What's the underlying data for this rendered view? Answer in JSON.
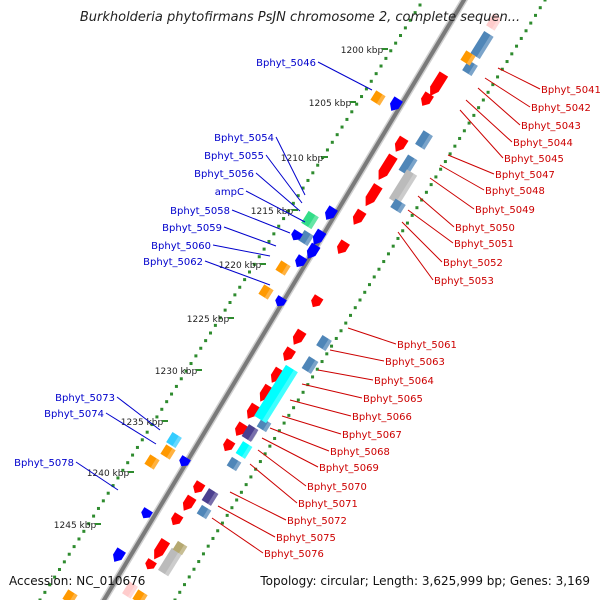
{
  "header": {
    "title": "Burkholderia phytofirmans PsJN chromosome 2, complete sequen..."
  },
  "footer": {
    "accession": "Accession: NC_010676",
    "summary": "Topology: circular; Length: 3,625,999 bp; Genes: 3,169"
  },
  "colors": {
    "backbone": "#7a7a7a",
    "tick_major": "#2e8b2e",
    "tick_minor": "#2e8b2e",
    "label_left": "#0000cc",
    "label_right": "#cc0000",
    "gene_red": "#ff0000",
    "gene_blue": "#0000ff",
    "gene_steelblue": "#4f86b8",
    "gene_orange": "#ff9900",
    "gene_cyan": "#00ffff",
    "gene_green": "#33dd88",
    "gene_purple": "#4b3f8f",
    "gene_gray": "#bbbbbb",
    "gene_khaki": "#b5a870",
    "gene_pink": "#ffcccc"
  },
  "scale_labels": [
    "1200 kbp",
    "1205 kbp",
    "1210 kbp",
    "1215 kbp",
    "1220 kbp",
    "1225 kbp",
    "1230 kbp",
    "1235 kbp",
    "1240 kbp",
    "1245 kbp"
  ],
  "left_genes": [
    "Bphyt_5046",
    "Bphyt_5054",
    "Bphyt_5055",
    "Bphyt_5056",
    "ampC",
    "Bphyt_5058",
    "Bphyt_5059",
    "Bphyt_5060",
    "Bphyt_5062",
    "Bphyt_5073",
    "Bphyt_5074",
    "Bphyt_5078"
  ],
  "right_genes": [
    "Bphyt_5041",
    "Bphyt_5042",
    "Bphyt_5043",
    "Bphyt_5044",
    "Bphyt_5045",
    "Bphyt_5047",
    "Bphyt_5048",
    "Bphyt_5049",
    "Bphyt_5050",
    "Bphyt_5051",
    "Bphyt_5052",
    "Bphyt_5053",
    "Bphyt_5061",
    "Bphyt_5063",
    "Bphyt_5064",
    "Bphyt_5065",
    "Bphyt_5066",
    "Bphyt_5067",
    "Bphyt_5068",
    "Bphyt_5069",
    "Bphyt_5070",
    "Bphyt_5071",
    "Bphyt_5072",
    "Bphyt_5075",
    "Bphyt_5076"
  ]
}
